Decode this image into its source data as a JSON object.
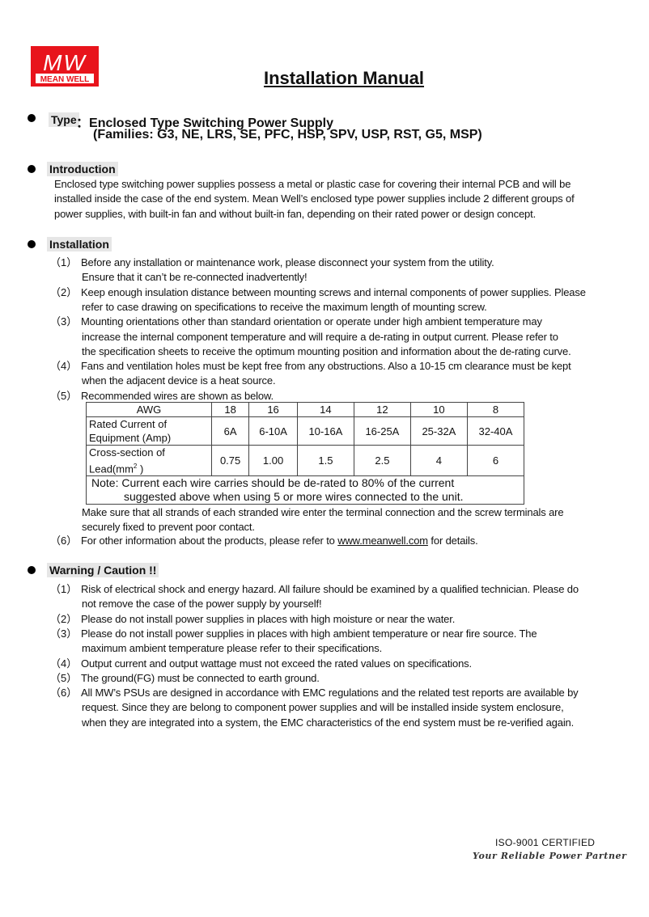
{
  "logo": {
    "mark": "MW",
    "name": "MEAN WELL",
    "color": "#e8141c"
  },
  "title": "Installation Manual",
  "type": {
    "label": "Type",
    "separator": "：",
    "line1": "Enclosed Type Switching Power Supply",
    "line2": "(Families: G3, NE, LRS, SE, PFC, HSP, SPV, USP, RST, G5, MSP)"
  },
  "introduction": {
    "heading": "Introduction",
    "lines": [
      "Enclosed type switching power supplies possess a metal or plastic case for covering their internal PCB and will be",
      "installed inside the case of the end system. Mean Well’s enclosed type power supplies include 2 different groups of",
      "power supplies, with built-in fan and without built-in fan, depending on their rated power or design concept."
    ]
  },
  "installation": {
    "heading": "Installation",
    "items": [
      {
        "num": "（1）",
        "lines": [
          "Before any installation or maintenance work, please disconnect your system from the utility.",
          "Ensure that it can’t be re-connected inadvertently!"
        ]
      },
      {
        "num": "（2）",
        "lines": [
          "Keep enough insulation distance between mounting screws and internal components of power supplies. Please",
          "refer to case drawing on specifications to receive the maximum length of mounting screw."
        ]
      },
      {
        "num": "（3）",
        "lines": [
          "Mounting orientations other than standard orientation or operate under high ambient temperature may",
          "increase the internal component temperature and will require a de-rating in output current. Please refer to",
          "the specification sheets to receive the optimum mounting position and information about the de-rating curve."
        ]
      },
      {
        "num": "（4）",
        "lines": [
          "Fans and ventilation holes must be kept free from any obstructions. Also a 10-15 cm clearance must be kept",
          "when the adjacent device is a heat source."
        ]
      },
      {
        "num": "（5）",
        "lines": [
          "Recommended wires are shown as below."
        ]
      }
    ],
    "table": {
      "header": [
        "AWG",
        "18",
        "16",
        "14",
        "12",
        "10",
        "8"
      ],
      "rows": [
        {
          "label": [
            "Rated Current of",
            "Equipment (Amp)"
          ],
          "values": [
            "6A",
            "6-10A",
            "10-16A",
            "16-25A",
            "25-32A",
            "32-40A"
          ]
        },
        {
          "label": [
            "Cross-section of",
            "Lead(mm",
            "2",
            " )"
          ],
          "values": [
            "0.75",
            "1.00",
            "1.5",
            "2.5",
            "4",
            "6"
          ]
        }
      ],
      "note": [
        "Note: Current each wire carries should be de-rated to 80% of the current",
        "suggested above when using 5 or more wires connected to the unit."
      ]
    },
    "after_table": [
      "Make sure that all strands of each stranded wire enter the terminal connection and the screw terminals are",
      "securely fixed to prevent poor contact."
    ],
    "item6": {
      "num": "（6）",
      "pre": "For other information about the products, please refer to ",
      "link": "www.meanwell.com",
      "post": " for details."
    }
  },
  "warning": {
    "heading": "Warning / Caution !!",
    "items": [
      {
        "num": "（1）",
        "lines": [
          "Risk of electrical shock and energy hazard. All failure should be examined by a qualified technician. Please do",
          "not remove the case of the power supply by yourself!"
        ]
      },
      {
        "num": "（2）",
        "lines": [
          "Please do not install power supplies in places with high moisture or near the water."
        ]
      },
      {
        "num": "（3）",
        "lines": [
          "Please do not install power supplies in places with high ambient temperature or near fire source. The",
          "maximum ambient temperature please refer to their specifications."
        ]
      },
      {
        "num": "（4）",
        "lines": [
          "Output current and output wattage must not exceed the rated values on specifications."
        ]
      },
      {
        "num": "（5）",
        "lines": [
          "The ground(FG) must be connected to earth ground."
        ]
      },
      {
        "num": "（6）",
        "lines": [
          "All MW’s PSUs are designed in accordance with EMC regulations and the related test reports are available by",
          "request. Since they are belong to component power supplies and will be installed inside system enclosure,",
          "when they are integrated into a system, the EMC characteristics of the end system must be re-verified again."
        ]
      }
    ]
  },
  "footer": {
    "iso": "ISO-9001 CERTIFIED",
    "tagline": "Your Reliable Power Partner"
  }
}
